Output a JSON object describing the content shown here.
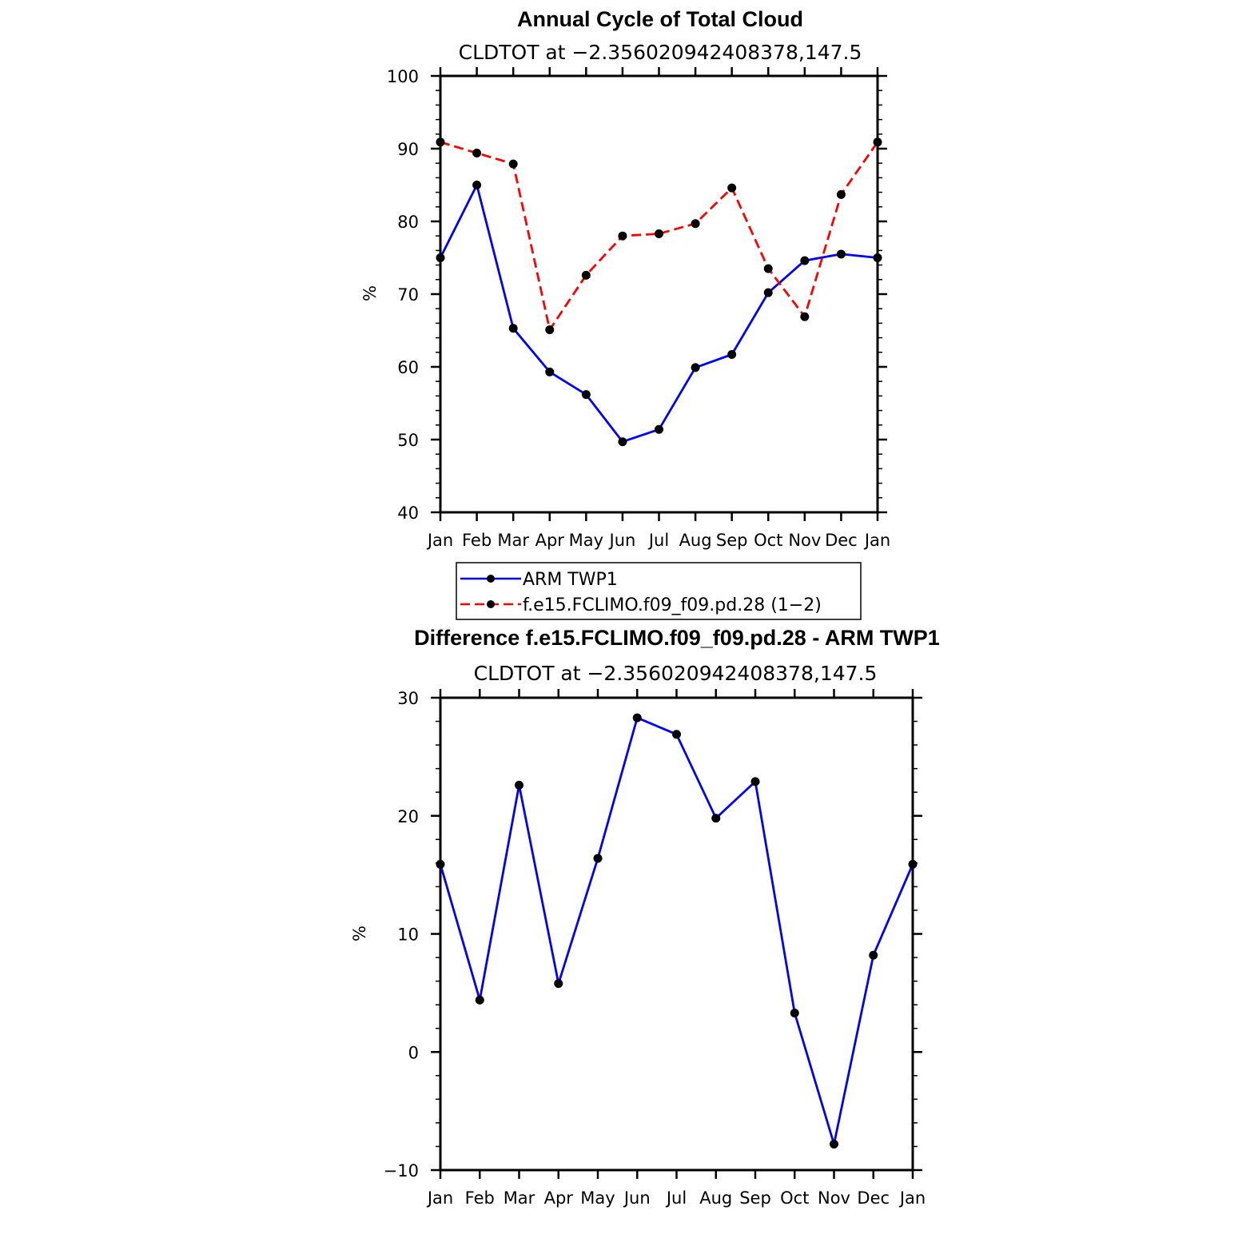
{
  "chart_data": [
    {
      "type": "line",
      "title": "Annual Cycle of Total Cloud",
      "subtitle": "CLDTOT at −2.356020942408378,147.5",
      "xlabel": "",
      "ylabel": "%",
      "categories": [
        "Jan",
        "Feb",
        "Mar",
        "Apr",
        "May",
        "Jun",
        "Jul",
        "Aug",
        "Sep",
        "Oct",
        "Nov",
        "Dec",
        "Jan"
      ],
      "ylim": [
        40,
        100
      ],
      "yticks": [
        "40",
        "50",
        "60",
        "70",
        "80",
        "90",
        "100"
      ],
      "grid": false,
      "legend_position": "bottom",
      "series": [
        {
          "name": "ARM TWP1",
          "color": "#0000ff",
          "dash": "solid",
          "values": [
            75.0,
            85.0,
            65.3,
            59.3,
            56.2,
            49.7,
            51.4,
            59.9,
            61.7,
            70.2,
            74.6,
            75.5,
            75.0
          ]
        },
        {
          "name": "f.e15.FCLIMO.f09_f09.pd.28 (1−2)",
          "color": "#ff0000",
          "dash": "dashed",
          "values": [
            90.9,
            89.4,
            87.9,
            65.1,
            72.6,
            78.0,
            78.3,
            79.7,
            84.6,
            73.5,
            66.9,
            83.7,
            90.9
          ]
        }
      ]
    },
    {
      "type": "line",
      "title": "Difference f.e15.FCLIMO.f09_f09.pd.28 - ARM TWP1",
      "subtitle": "CLDTOT at −2.356020942408378,147.5",
      "xlabel": "",
      "ylabel": "%",
      "categories": [
        "Jan",
        "Feb",
        "Mar",
        "Apr",
        "May",
        "Jun",
        "Jul",
        "Aug",
        "Sep",
        "Oct",
        "Nov",
        "Dec",
        "Jan"
      ],
      "ylim": [
        -10,
        30
      ],
      "yticks": [
        "−10",
        "0",
        "10",
        "20",
        "30"
      ],
      "grid": false,
      "series": [
        {
          "name": "Difference",
          "color": "#0000ff",
          "dash": "solid",
          "values": [
            15.9,
            4.4,
            22.6,
            5.8,
            16.4,
            28.3,
            26.9,
            19.8,
            22.9,
            3.3,
            -7.8,
            8.2,
            15.9
          ]
        }
      ]
    }
  ]
}
